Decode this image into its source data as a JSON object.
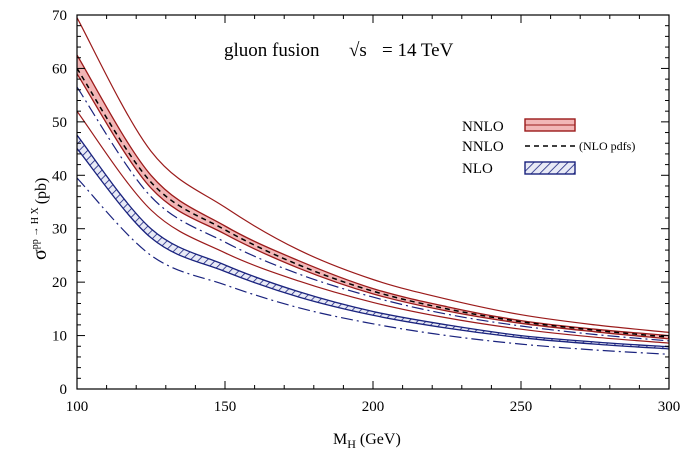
{
  "chart_data": {
    "type": "line",
    "title": "",
    "annotation": {
      "process": "gluon fusion",
      "energy_symbol": "√s",
      "energy_value": "= 14 TeV"
    },
    "xlabel": {
      "main": "M",
      "sub": "H",
      "unit": "(GeV)"
    },
    "ylabel": {
      "main": "σ",
      "sup": "pp → H X",
      "unit": "(pb)"
    },
    "xlim": [
      100,
      300
    ],
    "ylim": [
      0,
      70
    ],
    "xticks": [
      100,
      150,
      200,
      250,
      300
    ],
    "yticks": [
      0,
      10,
      20,
      30,
      40,
      50,
      60,
      70
    ],
    "x": [
      100,
      125,
      150,
      175,
      200,
      225,
      250,
      275,
      300
    ],
    "grid": false,
    "legend": {
      "placement": "right",
      "entries": [
        {
          "label": "NNLO",
          "note": "",
          "style": "red-band"
        },
        {
          "label": "NNLO",
          "note": "(NLO pdfs)",
          "style": "dashed"
        },
        {
          "label": "NLO",
          "note": "",
          "style": "blue-hatched"
        }
      ]
    },
    "series": [
      {
        "name": "NNLO",
        "kind": "band",
        "color": "#9b1b1b",
        "fill": "#f2b6b6",
        "upper": [
          62.5,
          40.0,
          30.5,
          24.0,
          18.8,
          15.4,
          12.8,
          11.2,
          10.0
        ],
        "lower": [
          59.0,
          37.6,
          29.0,
          22.6,
          17.8,
          14.6,
          12.3,
          10.7,
          9.4
        ]
      },
      {
        "name": "NNLO (NLO pdfs)",
        "kind": "dashed",
        "color": "#000000",
        "values": [
          60.0,
          38.7,
          29.8,
          23.2,
          18.3,
          15.0,
          12.6,
          11.0,
          9.7
        ]
      },
      {
        "name": "NLO",
        "kind": "band",
        "color": "#1a237e",
        "fill": "#c5cae9",
        "upper": [
          47.5,
          30.0,
          23.2,
          18.2,
          14.5,
          12.0,
          10.0,
          8.8,
          7.9
        ],
        "lower": [
          45.0,
          28.3,
          22.0,
          17.2,
          13.8,
          11.4,
          9.6,
          8.4,
          7.5
        ]
      },
      {
        "name": "",
        "kind": "solid",
        "color": "#9b1b1b",
        "values": [
          69.5,
          44.5,
          34.0,
          26.0,
          20.5,
          16.8,
          13.9,
          12.0,
          10.6
        ]
      },
      {
        "name": "",
        "kind": "solid",
        "color": "#9b1b1b",
        "values": [
          52.0,
          33.5,
          25.5,
          20.2,
          16.2,
          13.3,
          11.2,
          9.7,
          8.6
        ]
      },
      {
        "name": "",
        "kind": "dashdot",
        "color": "#1a237e",
        "values": [
          56.5,
          36.0,
          27.5,
          21.5,
          17.2,
          14.0,
          11.8,
          10.2,
          9.0
        ]
      },
      {
        "name": "",
        "kind": "dashdot",
        "color": "#1a237e",
        "values": [
          39.5,
          25.0,
          19.5,
          15.2,
          12.2,
          10.0,
          8.4,
          7.3,
          6.5
        ]
      }
    ]
  }
}
